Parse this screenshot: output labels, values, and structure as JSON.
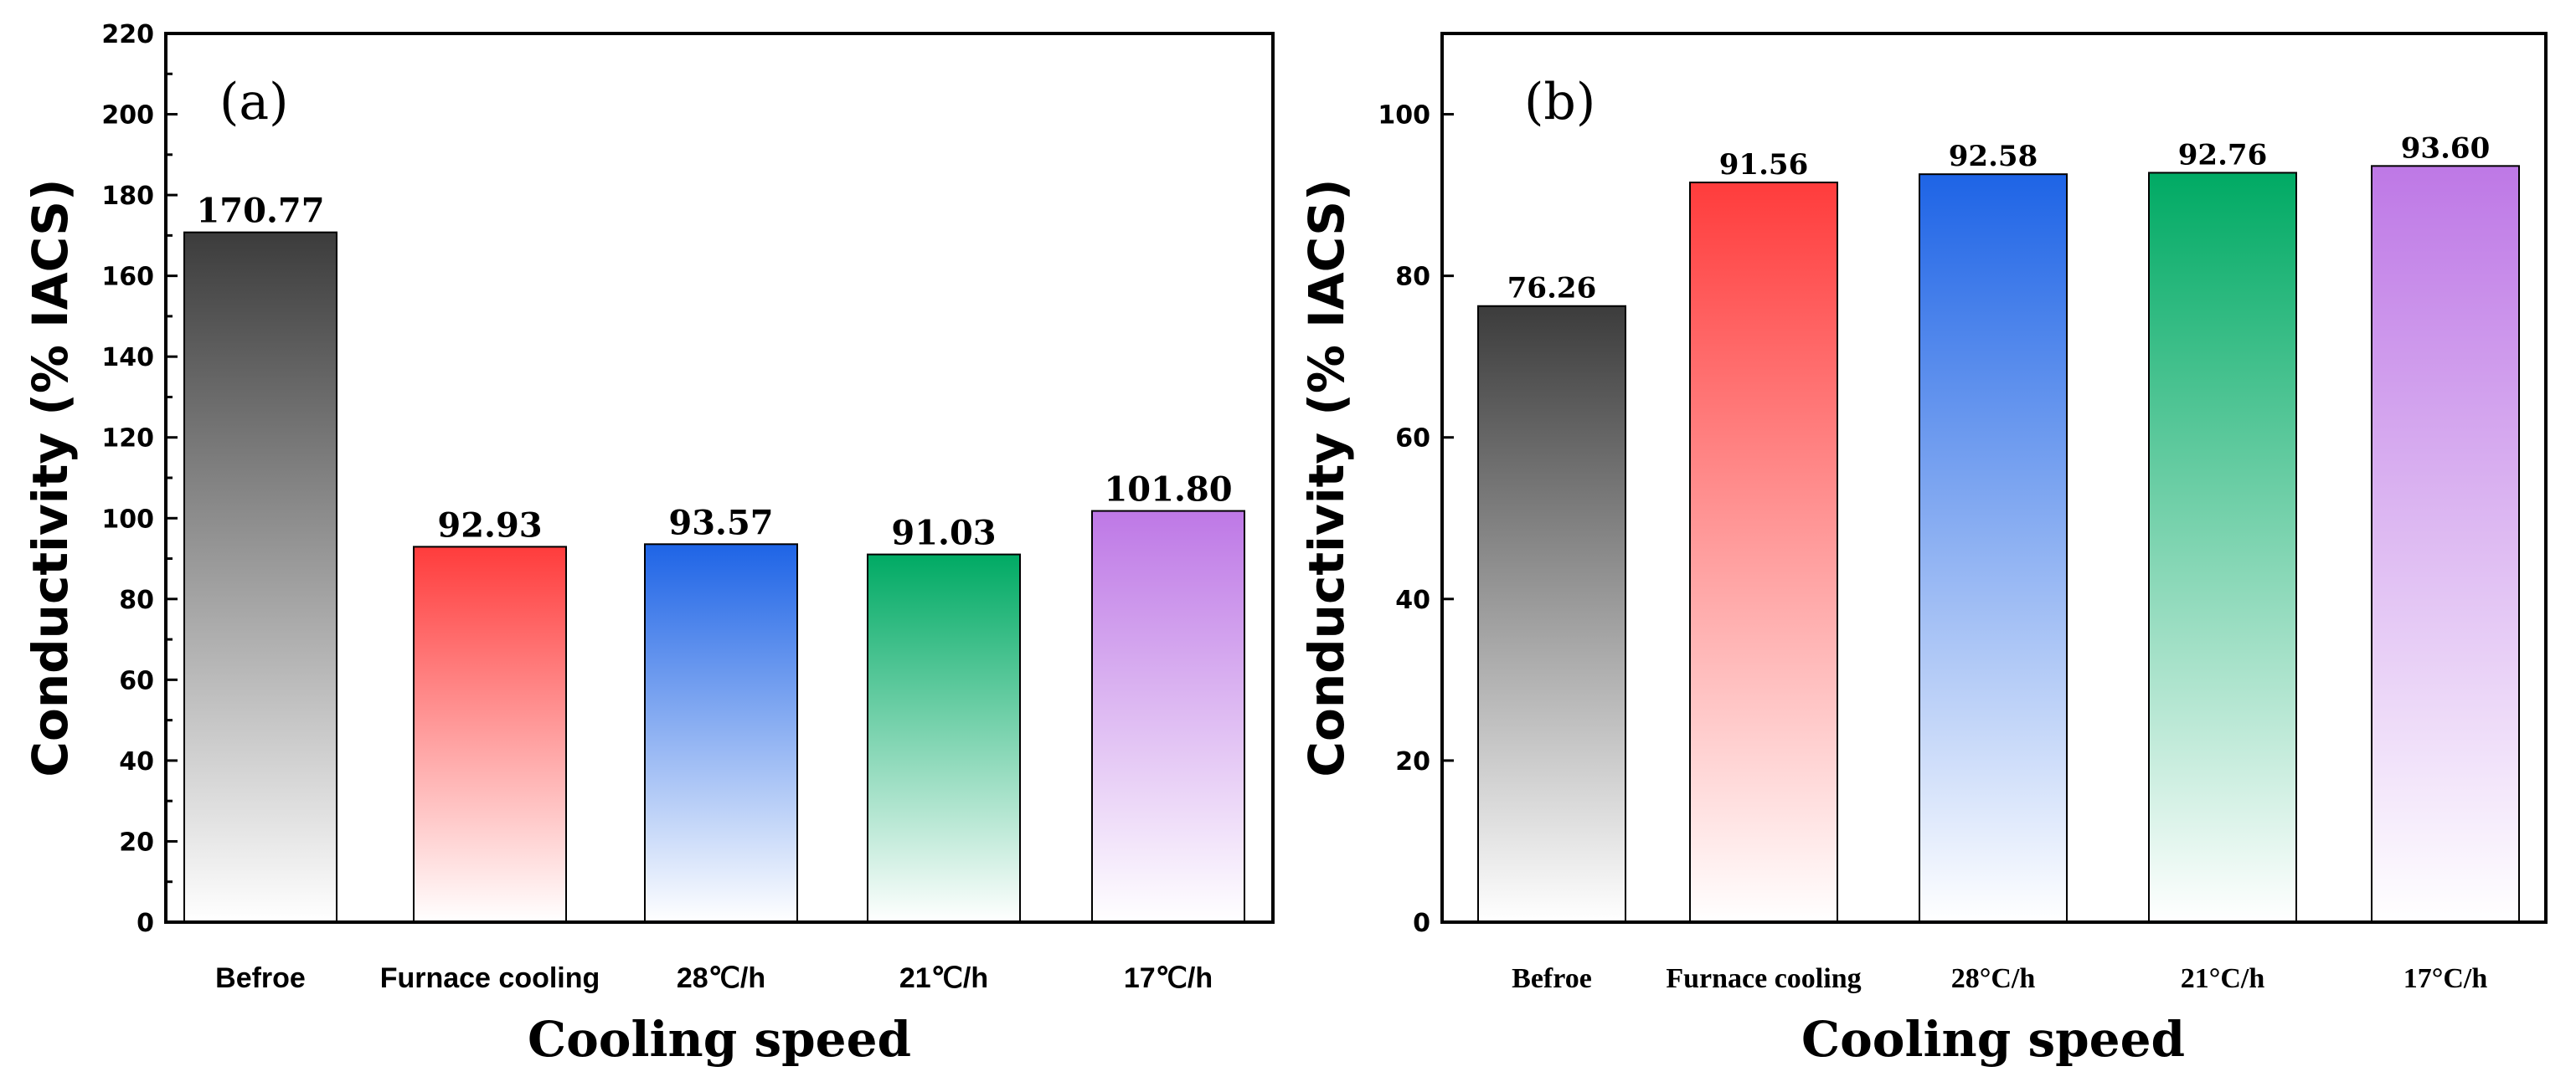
{
  "chart_data": [
    {
      "panel": "(a)",
      "type": "bar",
      "categories": [
        "Befroe",
        "Furnace cooling",
        "28℃/h",
        "21℃/h",
        "17℃/h"
      ],
      "values": [
        170.77,
        92.93,
        93.57,
        91.03,
        101.8
      ],
      "value_labels": [
        "170.77",
        "92.93",
        "93.57",
        "91.03",
        "101.80"
      ],
      "bar_colors": [
        "#3c3c3c",
        "#ff3c3c",
        "#1e64e6",
        "#00aa64",
        "#be78e6"
      ],
      "xlabel": "Cooling speed",
      "ylabel": "Conductivity (% IACS)",
      "ylim": [
        0,
        220
      ],
      "yticks": [
        0,
        20,
        40,
        60,
        80,
        100,
        120,
        140,
        160,
        180,
        200,
        220
      ],
      "grid": false
    },
    {
      "panel": "(b)",
      "type": "bar",
      "categories": [
        "Befroe",
        "Furnace cooling",
        "28°C/h",
        "21°C/h",
        "17°C/h"
      ],
      "values": [
        76.26,
        91.56,
        92.58,
        92.76,
        93.6
      ],
      "value_labels": [
        "76.26",
        "91.56",
        "92.58",
        "92.76",
        "93.60"
      ],
      "bar_colors": [
        "#3c3c3c",
        "#ff3c3c",
        "#1e64e6",
        "#00aa64",
        "#be78e6"
      ],
      "xlabel": "Cooling speed",
      "ylabel": "Conductivity (% IACS)",
      "ylim": [
        0,
        110
      ],
      "yticks": [
        0,
        20,
        40,
        60,
        80,
        100
      ],
      "grid": false
    }
  ]
}
